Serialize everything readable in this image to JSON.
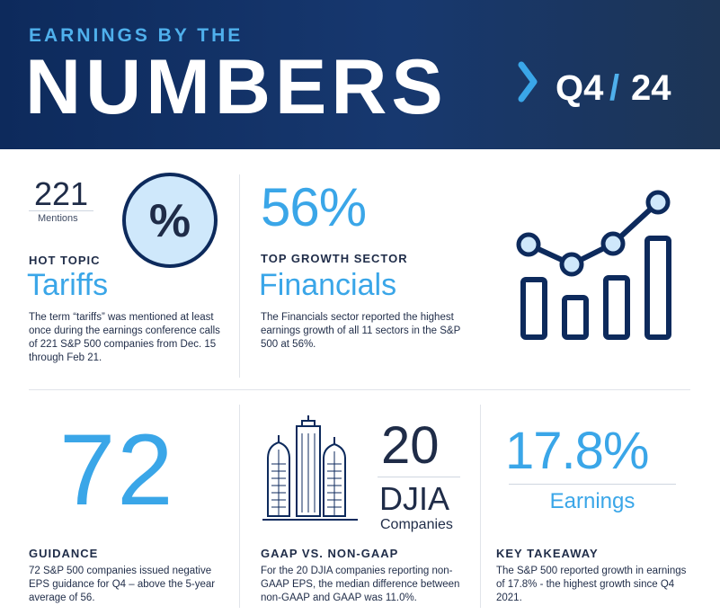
{
  "header": {
    "kicker": "EARNINGS BY THE",
    "title": "NUMBERS",
    "quarter_a": "Q4",
    "quarter_sep": "/",
    "quarter_b": "24"
  },
  "hot_topic": {
    "count": "221",
    "count_label": "Mentions",
    "badge_symbol": "%",
    "label": "HOT TOPIC",
    "headline": "Tariffs",
    "body": "The term “tariffs” was mentioned at least once during the earnings conference calls of 221 S&P 500 companies from Dec. 15 through Feb 21."
  },
  "top_growth": {
    "value": "56%",
    "label": "TOP GROWTH SECTOR",
    "headline": "Financials",
    "body": "The Financials sector reported the highest earnings growth of all 11 sectors in the S&P 500 at 56%."
  },
  "guidance": {
    "value": "72",
    "label": "GUIDANCE",
    "body": "72 S&P 500 companies issued negative EPS guidance for Q4 – above the 5-year average of 56."
  },
  "gaap": {
    "value": "20",
    "unit": "DJIA",
    "unit_sub": "Companies",
    "label": "GAAP VS. NON-GAAP",
    "body": "For the 20 DJIA companies reporting non-GAAP EPS, the median difference between non-GAAP and GAAP was 11.0%."
  },
  "takeaway": {
    "value": "17.8%",
    "sub": "Earnings",
    "label": "KEY TAKEAWAY",
    "body": "The S&P 500 reported growth in earnings of 17.8% - the highest growth since Q4 2021."
  },
  "colors": {
    "navy": "#0d2a5c",
    "accent_blue": "#3aa6e8",
    "light_blue": "#4fb0ec",
    "badge_fill": "#cfe8fb",
    "text_dark": "#1f2c48"
  },
  "icons": [
    "chevron-right-icon",
    "percent-badge-icon",
    "growth-chart-icon",
    "buildings-icon"
  ]
}
